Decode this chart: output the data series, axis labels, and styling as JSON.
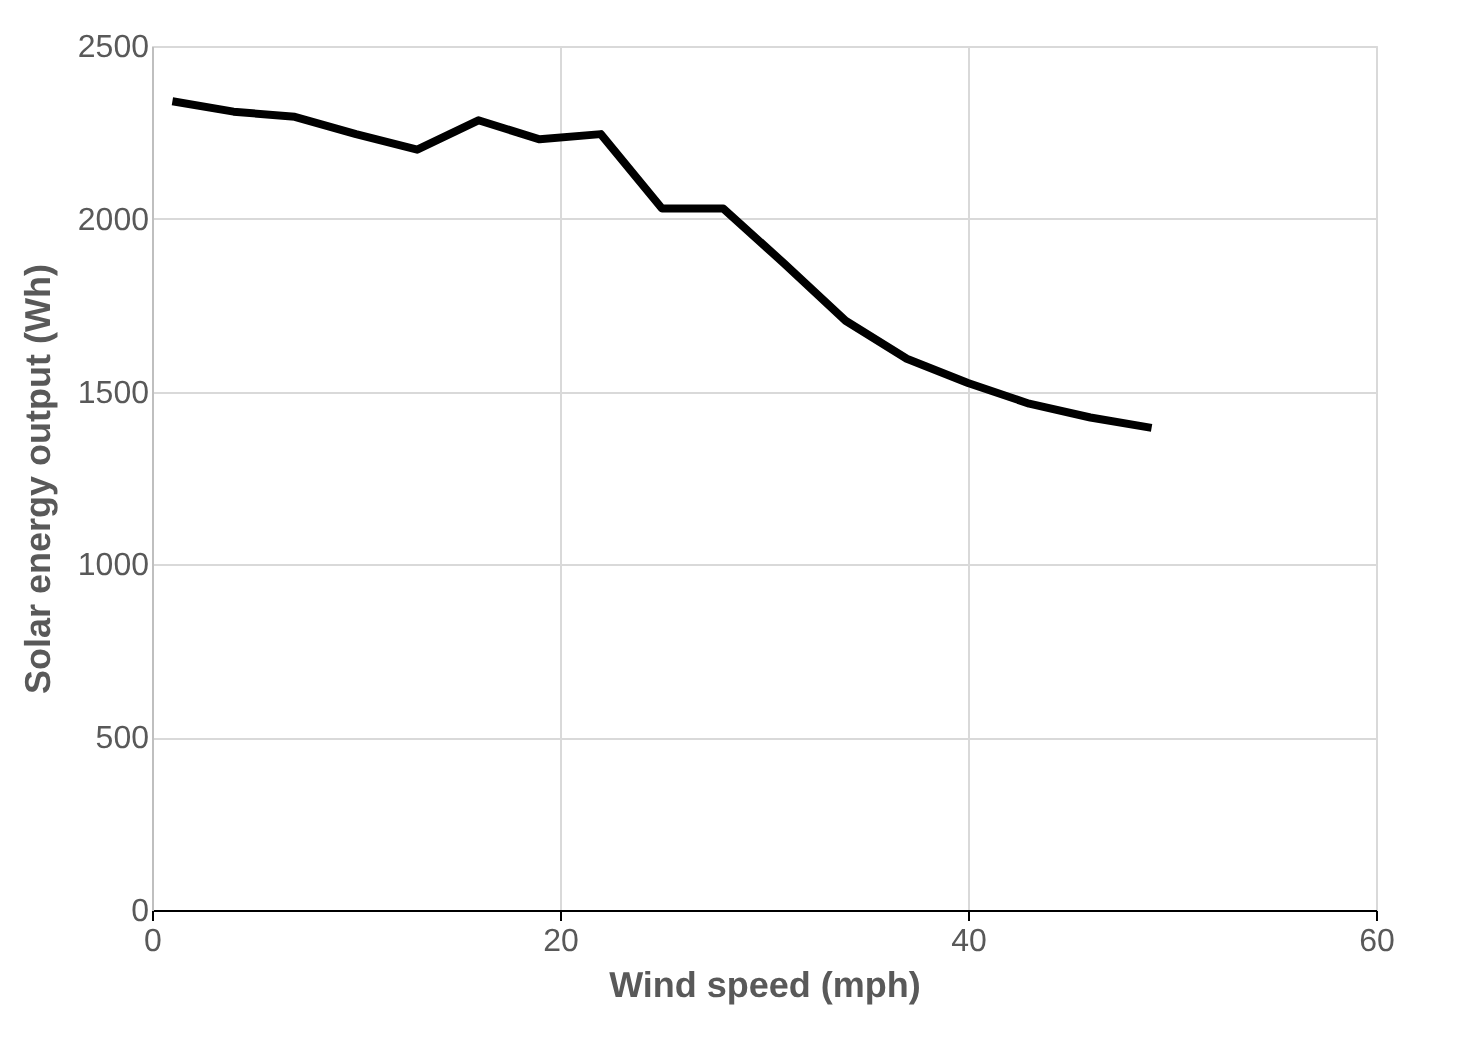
{
  "chart_data": {
    "type": "line",
    "xlabel": "Wind speed (mph)",
    "ylabel": "Solar energy output (Wh)",
    "x": [
      1,
      4,
      7,
      10,
      13,
      16,
      19,
      22,
      25,
      28,
      31,
      34,
      37,
      40,
      43,
      46,
      49
    ],
    "series": [
      {
        "color": "#000000",
        "values": [
          2340,
          2310,
          2295,
          2245,
          2200,
          2285,
          2230,
          2245,
          2030,
          2030,
          1870,
          1705,
          1595,
          1525,
          1465,
          1425,
          1395
        ]
      }
    ],
    "xlim": [
      0,
      60
    ],
    "xticks": [
      0,
      20,
      40,
      60
    ],
    "ylim": [
      0,
      2500
    ],
    "yticks": [
      0,
      500,
      1000,
      1500,
      2000,
      2500
    ],
    "grid": true,
    "marker": "none",
    "line_style": "solid"
  }
}
